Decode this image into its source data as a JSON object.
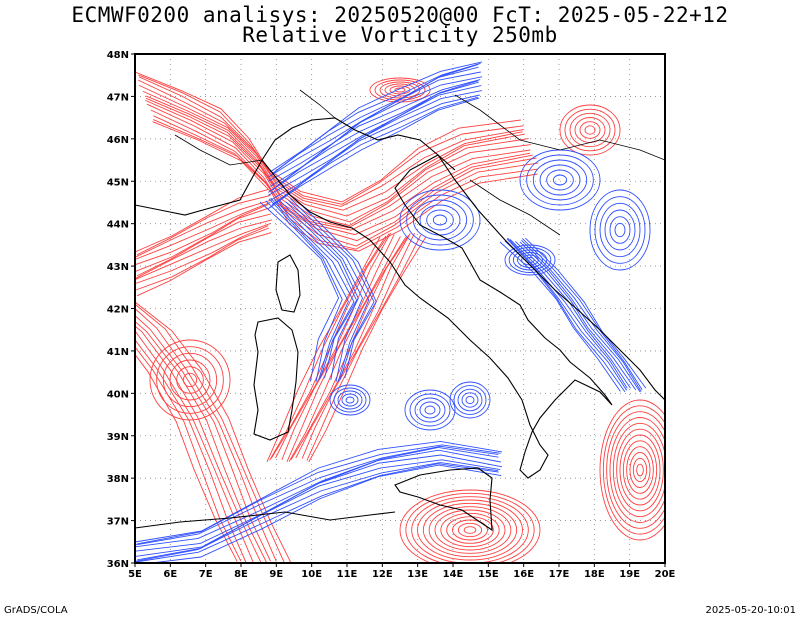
{
  "header": {
    "title_line1": "ECMWF0200 analisys: 20250520@00 FcT: 2025-05-22+12",
    "title_line2": "Relative Vorticity 250mb"
  },
  "footer": {
    "left": "GrADS/COLA",
    "right": "2025-05-20-10:01"
  },
  "map": {
    "lon_range": [
      5,
      20
    ],
    "lat_range": [
      36,
      48
    ],
    "lon_ticks": [
      "5E",
      "6E",
      "7E",
      "8E",
      "9E",
      "10E",
      "11E",
      "12E",
      "13E",
      "14E",
      "15E",
      "16E",
      "17E",
      "18E",
      "19E",
      "20E"
    ],
    "lat_ticks": [
      "36N",
      "37N",
      "38N",
      "39N",
      "40N",
      "41N",
      "42N",
      "43N",
      "44N",
      "45N",
      "46N",
      "47N",
      "48N"
    ],
    "colors": {
      "positive": "#ff4040",
      "negative": "#3050ff",
      "coast": "#000000",
      "grid": "#888888"
    }
  }
}
